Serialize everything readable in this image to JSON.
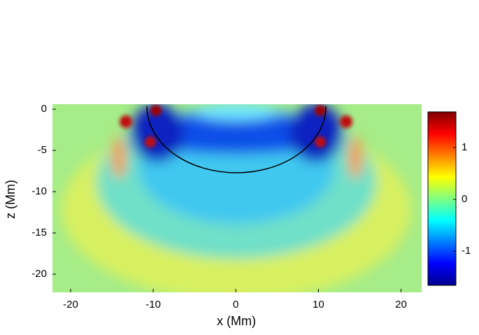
{
  "chart_data": {
    "type": "heatmap",
    "xlabel": "x (Mm)",
    "ylabel": "z (Mm)",
    "xlim": [
      -22.2,
      22.5
    ],
    "xticks": [
      -20,
      -10,
      0,
      10,
      20
    ],
    "ylim": [
      -22.2,
      0.6
    ],
    "yticks": [
      -20,
      -15,
      -10,
      -5,
      0
    ],
    "clim": [
      -1.66,
      1.69
    ],
    "cticks": [
      -1,
      0,
      1
    ],
    "colormap": "jet"
  }
}
